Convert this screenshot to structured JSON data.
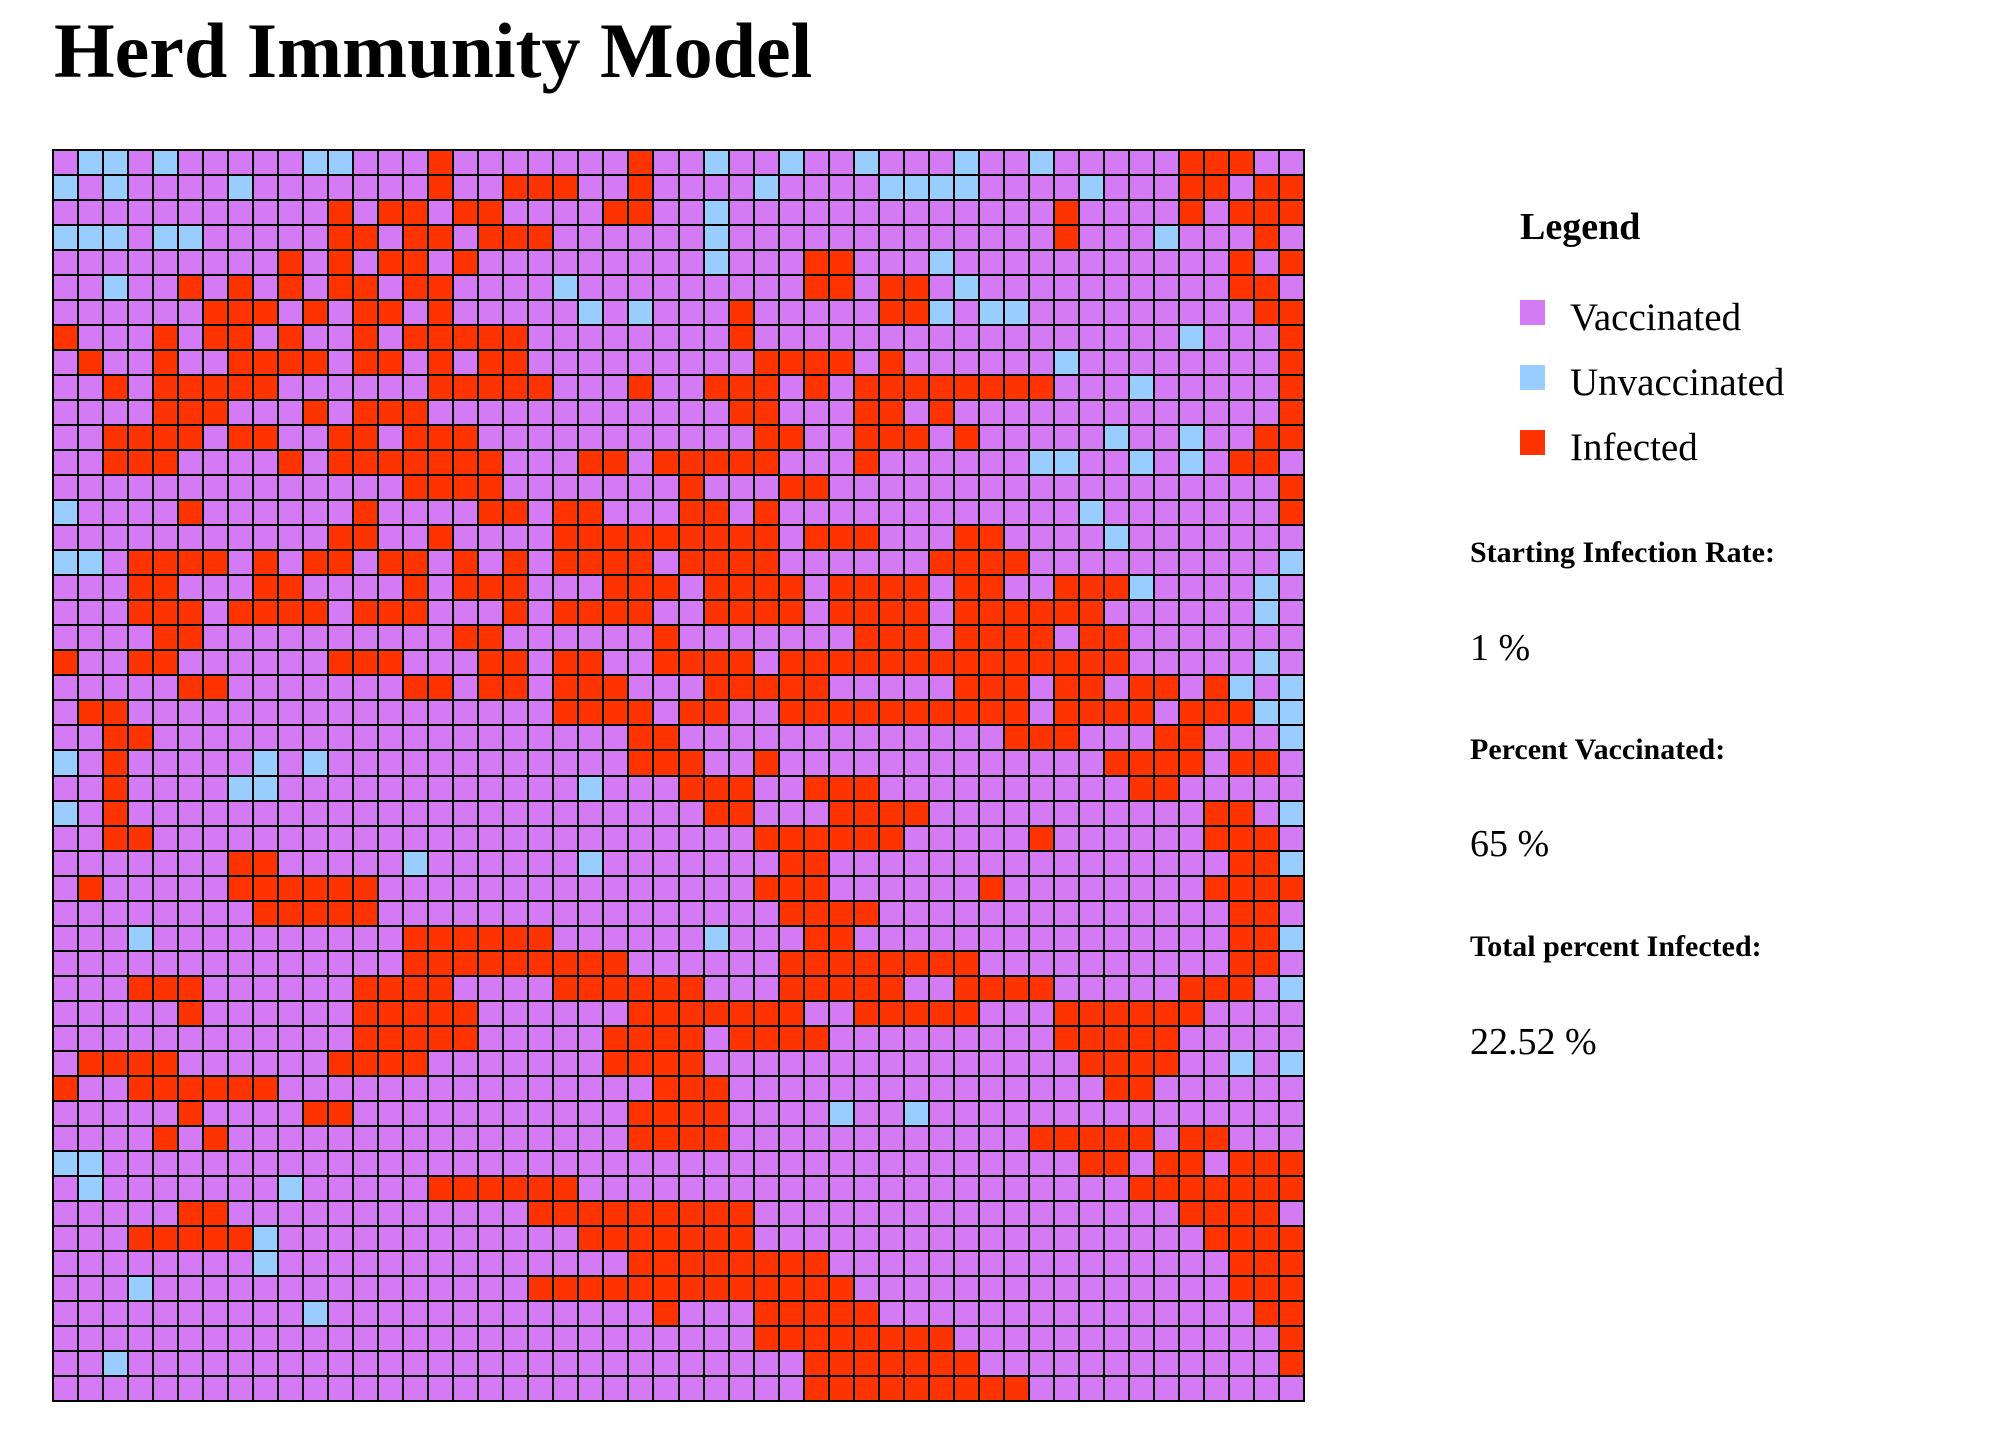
{
  "page": {
    "title": "Herd Immunity Model"
  },
  "legend": {
    "title": "Legend",
    "items": [
      {
        "key": "v",
        "label": "Vaccinated",
        "color": "#d57af5"
      },
      {
        "key": "u",
        "label": "Unvaccinated",
        "color": "#99ccff"
      },
      {
        "key": "i",
        "label": "Infected",
        "color": "#ff3300"
      }
    ]
  },
  "stats": {
    "starting_infection_label": "Starting Infection Rate:",
    "starting_infection_value": "1 %",
    "percent_vaccinated_label": "Percent Vaccinated:",
    "percent_vaccinated_value": "65 %",
    "total_infected_label": "Total percent Infected:",
    "total_infected_value": "22.52 %"
  },
  "grid": {
    "size": 50,
    "legend_key": {
      "v": "vaccinated",
      "u": "unvaccinated",
      "i": "infected"
    },
    "rows": [
      "vuuvuvvvvvuuvvvivvvvvvvivvuvvuvvuvvvuvvuvvvvviiivv",
      "uvuvvvvuvvvvvvvivviiivvivvvvuvvvvuuuuvvvvuvvviivii",
      "vvvvvvvvvvviviiviivvvviivvuvvvvvvvvvvvvvivvvviviii",
      "uuuvuuvvvvviiviiviiivvvvvvuvvvvvvvvvvvvvivvvuvvviv",
      "vvvvvvvvviviviivivvvvvvvvvuvvviivvvuvvvvvvvvvvvivi",
      "vvuvviviviviiviivvvvuvvvvvvvvviiviivuvvvvvvvvvviiv",
      "vvvvvviiiviviivivvvvvuvuvvvivvvvviiuvuuvvvvvvvvvii",
      "ivvviviivivviviiiiivvvvvvvvivvvvvvvvvvvvvvvvvuvvvi",
      "vivvivviiiiviiviviivvvvvvvvviiiivivvvvvvuvvvvvvvvii",
      "vviviiiiivvvvvviiiiivvvivviiiviviiiiiiiivvvuvvvvvi",
      "vvvviiivvviviiivvvvvvvvvvvviivvviivivvvvvvvvvvvvvi",
      "vviiiiviivviiviiivvvvvvvvvvviivviiivivvvvvuvvuvvii",
      "vviiivvvviviiiiiiivvviiviiiiivvvivvvvvvuuvvuvuviiv",
      "vvvvvvvvvvvvvviiiivvvvvvvivvviivvvvvvvvvvvvvvvvvvi",
      "uvvvvivvvvvvivvvviiviivvviivivvvvvvvvvvvvuvvvvvvvi",
      "vvvvvvvvvvviivvivvvviiiiiiiiiviiivvviivvvvuvvvvvvv",
      "uuviiiiviviiviiviviviiiiviiiivvvvvviiiivvvvvvvvvvu",
      "vvviivvviivvvviviiivvviiiviiiiviiiiviivviiiuvvvvuv",
      "vvviiiviiiiviiivvviviiiivviiiiviiiiviiiiiivvvvvvuv",
      "vvvviivvvvvvvvvviivvvvvvivvvvvvviiiviiiiviivvvvvvv",
      "ivviivvvvvviiivvviiviivviiiiviiiiiiiiiiiiiivvvvvuv",
      "vvvvviivvvvvvviiviiviiivvviiiiivvvvviiiviiviiviuvu",
      "viivvvvvvvvvvvvvvvvviiiiviivviiiiiiiiiiviiiiviiiuu",
      "vviivvvvvvvvvvvvvvvvvvviivvvvvvvvvvvvviiivvviivvvu",
      "uvivvvvvuvuvvvvvvvvvvvviiivvivvvvvvvvvvvvviiiiviiv",
      "vvivvvvuuvvvvvvvvvvvvuvvviiivviiivvvvvvvvvviivvvvv",
      "uvivvvvvvvvvvvvvvvvvvvvvvviivvviiiivvvvvvvvvvviivu",
      "vviivvvvvvvvvvvvvvvvvvvvvvvviiiiiivvvvvivvvvvviiiv",
      "vvvvvvviivvvvvuvvvvvvuvvvvvvviivvvvvvvvvvvvvvvviiu",
      "vivvvvviiiiiivvvvvvvvvvvvvvviiivvvvvvivvvvvvvviiii",
      "vvvvvvvviiiiivvvvvvvvvvvvvvvviiiivvvvvvvvvvvvvviiv",
      "vvvuvvvvvvvvvviiiiiivvvvvvuvvviivvvvvvvvvvvvvvviiu",
      "vvvvvvvvvvvvvviiiiiiiiivvvvvviiiiiiiivvvvvvvvvviiv",
      "vvviiivvvvvviiiivvvviiiiiivvviiiiivviiiivvvvviiivu",
      "vvvvvivvvvvviiiiivvvvvviiiiiiivviiiiivvviiiiiivvvv",
      "vvvvvvvvvvvviiiiivvvvviiiiviiiivvvvvvvvviiiiivvvvv",
      "viiiivvvvvviiiivvvvvvviiiivvvvvvvvvvvvvvviiiivvuvu",
      "ivviiiiiivvvvvvvvvvvvvvviiivvvvvvvvvvvvvvviivvvvvv",
      "vvvvvivvvviivvvvvvvvvvviiiivvvvuvvuvvvvvvvvvvvvvvv",
      "vvvvivivvvvvvvvvvvvvvvviiiivvvvvvvvvvvviiiiiviivvv",
      "uuvvvvvvvvvvvvvvvvvvvvvvvvvvvvvvvvvvvvvvviiviiviii",
      "vuvvvvvvvuvvvvviiiiiivvvvvvvvvvvvvvvvvvvvvviiiiiii",
      "vvvvviivvvvvvvvvvvviiiiiiiiivvvvvvvvvvvvvvvvviiiiv",
      "vvviiiiiuvvvvvvvvvvvviiiiiiivvvvvvvvvvvvvvvvvviiii",
      "vvvvvvvvuvvvvvvvvvvvvvviiiiiiiivvvvvvvvvvvvvvvviii",
      "vvvuvvvvvvvvvvvvvvviiiiiiiiiiiiivvvvvvvvvvvvvvviii",
      "vvvvvvvvvvuvvvvvvvvvvvvvivvviiiiivvvvvvvvvvvvvvvii",
      "vvvvvvvvvvvvvvvvvvvvvvvvvvvviiiiiiiivvvvvvvvvvvvvii",
      "vvuvvvvvvvvvvvvvvvvvvvvvvvvvvviiiiiiivvvvvvvvvvvvii",
      "vvvvvvvvvvvvvvvvvvvvvvvvvvvvvviiiiiiiiivvvvvvvvvvvv"
    ]
  }
}
